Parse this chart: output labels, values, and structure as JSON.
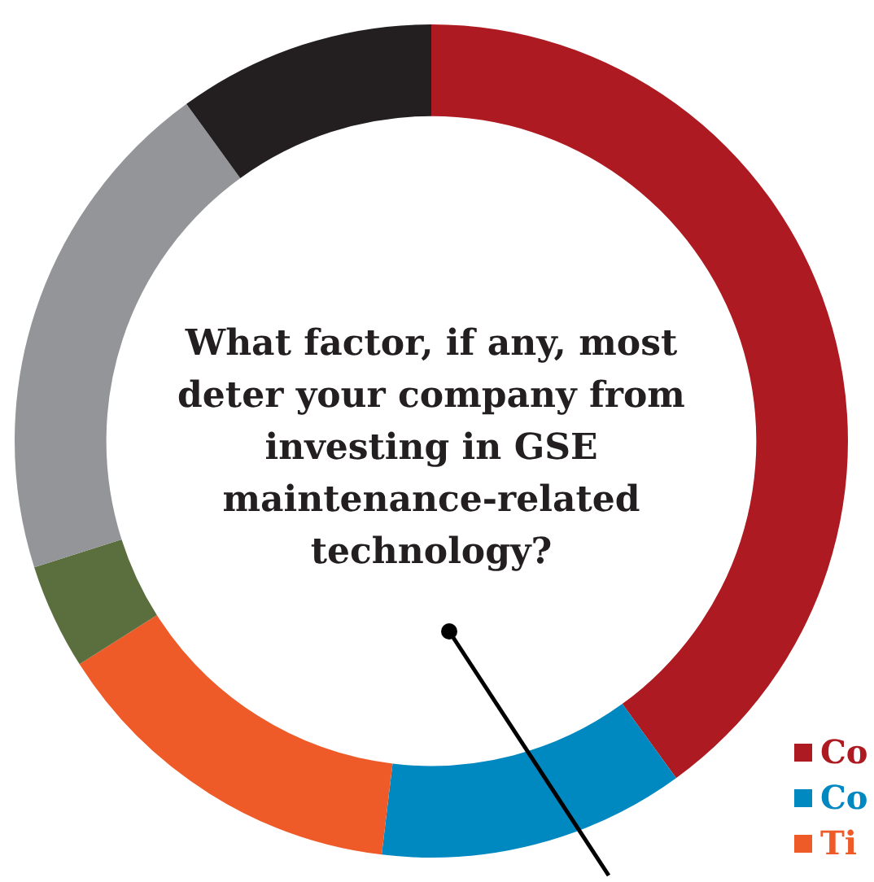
{
  "chart_data": {
    "type": "donut",
    "title": "What factor, if any, most deter your company from investing in GSE maintenance-related technology?",
    "categories": [
      "Co",
      "Co",
      "Ti",
      null,
      null,
      null
    ],
    "values": [
      40.0,
      11.9,
      14.1,
      4.1,
      19.9,
      10.0
    ],
    "colors": [
      "#ae1a21",
      "#0088c0",
      "#ef5a29",
      "#5a6e3e",
      "#939598",
      "#231f20"
    ],
    "legend": "bottom right"
  }
}
